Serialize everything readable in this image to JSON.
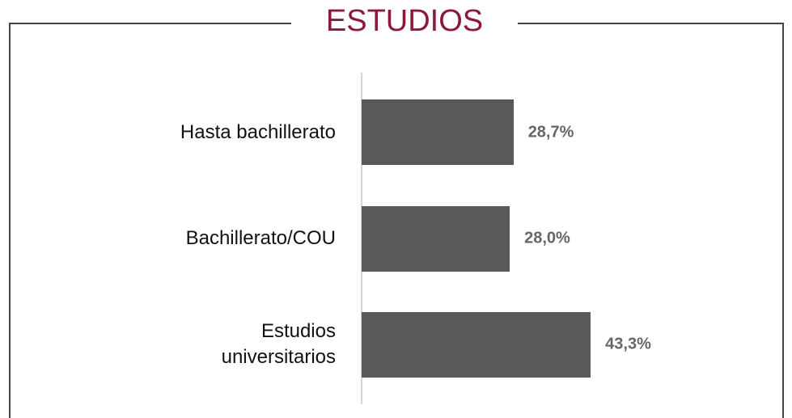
{
  "chart_data": {
    "type": "barh",
    "title": "ESTUDIOS",
    "categories": [
      "Hasta bachillerato",
      "Bachillerato/COU",
      "Estudios\nuniversitarios"
    ],
    "values": [
      28.7,
      28.0,
      43.3
    ],
    "value_labels": [
      "28,7%",
      "28,0%",
      "43,3%"
    ],
    "color": "#595959",
    "xlim": [
      0,
      50
    ]
  }
}
